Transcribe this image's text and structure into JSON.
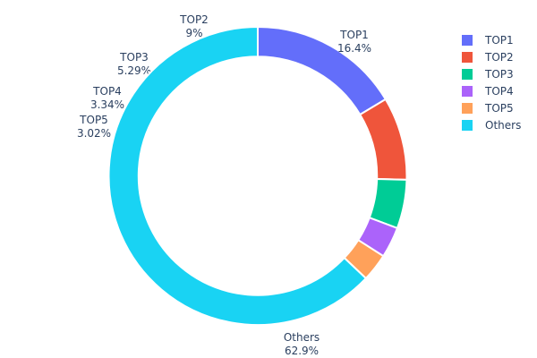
{
  "chart_data": {
    "type": "pie",
    "hole": 0.8,
    "direction": "clockwise",
    "labels": [
      "TOP1",
      "TOP2",
      "TOP3",
      "TOP4",
      "TOP5",
      "Others"
    ],
    "values": [
      16.4,
      9,
      5.29,
      3.34,
      3.02,
      62.9
    ],
    "value_labels": [
      "16.4%",
      "9%",
      "5.29%",
      "3.34%",
      "3.02%",
      "62.9%"
    ],
    "colors": [
      "#636efa",
      "#EF553B",
      "#00cc96",
      "#ab63fa",
      "#FFA15A",
      "#19d3f3"
    ],
    "legend_placement": "top-right"
  }
}
